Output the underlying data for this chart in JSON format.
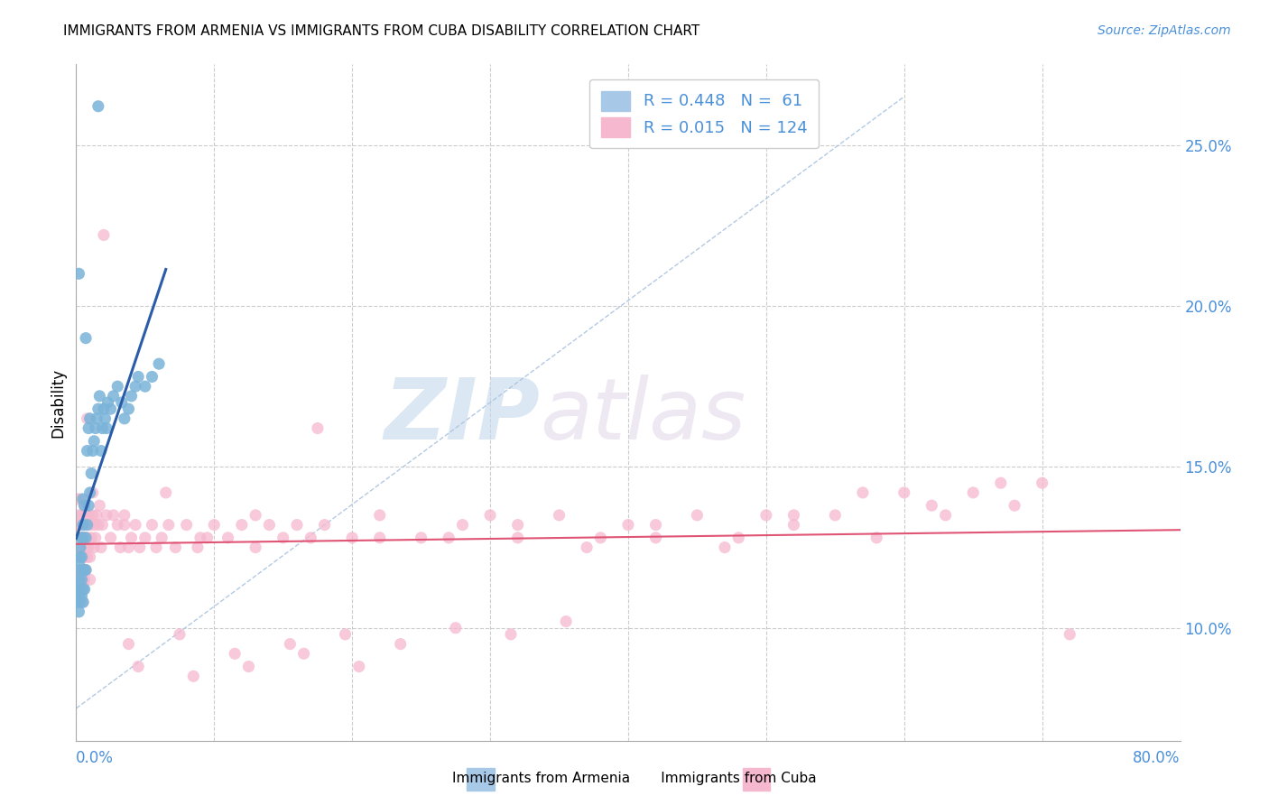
{
  "title": "IMMIGRANTS FROM ARMENIA VS IMMIGRANTS FROM CUBA DISABILITY CORRELATION CHART",
  "source": "Source: ZipAtlas.com",
  "ylabel": "Disability",
  "right_yticks": [
    0.1,
    0.15,
    0.2,
    0.25
  ],
  "right_yticklabels": [
    "10.0%",
    "15.0%",
    "20.0%",
    "25.0%"
  ],
  "xlim": [
    0.0,
    0.8
  ],
  "ylim": [
    0.065,
    0.275
  ],
  "armenia_color": "#7ab3d9",
  "cuba_color": "#f5b8ce",
  "armenia_line_color": "#2a5ca8",
  "cuba_line_color": "#e05575",
  "ref_line_color": "#aac4e0",
  "watermark_zip": "ZIP",
  "watermark_atlas": "atlas",
  "armenia_x": [
    0.001,
    0.001,
    0.002,
    0.002,
    0.002,
    0.002,
    0.003,
    0.003,
    0.003,
    0.003,
    0.003,
    0.004,
    0.004,
    0.004,
    0.004,
    0.005,
    0.005,
    0.005,
    0.005,
    0.005,
    0.005,
    0.006,
    0.006,
    0.006,
    0.007,
    0.007,
    0.007,
    0.008,
    0.008,
    0.009,
    0.009,
    0.01,
    0.01,
    0.011,
    0.012,
    0.013,
    0.014,
    0.015,
    0.016,
    0.017,
    0.018,
    0.019,
    0.02,
    0.021,
    0.022,
    0.023,
    0.025,
    0.027,
    0.03,
    0.033,
    0.035,
    0.038,
    0.04,
    0.043,
    0.045,
    0.05,
    0.055,
    0.06,
    0.001,
    0.002,
    0.016
  ],
  "armenia_y": [
    0.108,
    0.112,
    0.105,
    0.11,
    0.115,
    0.12,
    0.108,
    0.112,
    0.118,
    0.122,
    0.125,
    0.11,
    0.115,
    0.122,
    0.128,
    0.108,
    0.112,
    0.118,
    0.128,
    0.132,
    0.14,
    0.112,
    0.118,
    0.138,
    0.118,
    0.128,
    0.19,
    0.132,
    0.155,
    0.138,
    0.162,
    0.142,
    0.165,
    0.148,
    0.155,
    0.158,
    0.162,
    0.165,
    0.168,
    0.172,
    0.155,
    0.162,
    0.168,
    0.165,
    0.162,
    0.17,
    0.168,
    0.172,
    0.175,
    0.17,
    0.165,
    0.168,
    0.172,
    0.175,
    0.178,
    0.175,
    0.178,
    0.182,
    0.108,
    0.21,
    0.262
  ],
  "cuba_x": [
    0.001,
    0.001,
    0.001,
    0.002,
    0.002,
    0.002,
    0.003,
    0.003,
    0.003,
    0.003,
    0.004,
    0.004,
    0.004,
    0.004,
    0.005,
    0.005,
    0.005,
    0.005,
    0.006,
    0.006,
    0.006,
    0.006,
    0.007,
    0.007,
    0.007,
    0.008,
    0.008,
    0.008,
    0.009,
    0.009,
    0.01,
    0.01,
    0.01,
    0.011,
    0.012,
    0.012,
    0.013,
    0.013,
    0.014,
    0.015,
    0.016,
    0.017,
    0.018,
    0.019,
    0.02,
    0.022,
    0.025,
    0.027,
    0.03,
    0.032,
    0.035,
    0.038,
    0.04,
    0.043,
    0.046,
    0.05,
    0.055,
    0.058,
    0.062,
    0.067,
    0.072,
    0.08,
    0.088,
    0.095,
    0.1,
    0.11,
    0.12,
    0.13,
    0.14,
    0.15,
    0.16,
    0.17,
    0.18,
    0.2,
    0.22,
    0.25,
    0.28,
    0.3,
    0.32,
    0.35,
    0.38,
    0.4,
    0.42,
    0.45,
    0.48,
    0.5,
    0.52,
    0.55,
    0.58,
    0.6,
    0.63,
    0.65,
    0.68,
    0.7,
    0.035,
    0.065,
    0.09,
    0.13,
    0.175,
    0.22,
    0.27,
    0.32,
    0.37,
    0.42,
    0.47,
    0.52,
    0.57,
    0.62,
    0.67,
    0.72,
    0.038,
    0.075,
    0.115,
    0.155,
    0.195,
    0.235,
    0.275,
    0.315,
    0.355,
    0.045,
    0.085,
    0.125,
    0.165,
    0.205
  ],
  "cuba_y": [
    0.128,
    0.132,
    0.14,
    0.122,
    0.128,
    0.135,
    0.118,
    0.125,
    0.132,
    0.14,
    0.112,
    0.118,
    0.128,
    0.135,
    0.108,
    0.115,
    0.122,
    0.132,
    0.115,
    0.122,
    0.128,
    0.138,
    0.118,
    0.125,
    0.135,
    0.122,
    0.128,
    0.165,
    0.125,
    0.135,
    0.115,
    0.122,
    0.132,
    0.128,
    0.135,
    0.142,
    0.125,
    0.132,
    0.128,
    0.135,
    0.132,
    0.138,
    0.125,
    0.132,
    0.222,
    0.135,
    0.128,
    0.135,
    0.132,
    0.125,
    0.132,
    0.125,
    0.128,
    0.132,
    0.125,
    0.128,
    0.132,
    0.125,
    0.128,
    0.132,
    0.125,
    0.132,
    0.125,
    0.128,
    0.132,
    0.128,
    0.132,
    0.125,
    0.132,
    0.128,
    0.132,
    0.128,
    0.132,
    0.128,
    0.135,
    0.128,
    0.132,
    0.135,
    0.128,
    0.135,
    0.128,
    0.132,
    0.128,
    0.135,
    0.128,
    0.135,
    0.132,
    0.135,
    0.128,
    0.142,
    0.135,
    0.142,
    0.138,
    0.145,
    0.135,
    0.142,
    0.128,
    0.135,
    0.162,
    0.128,
    0.128,
    0.132,
    0.125,
    0.132,
    0.125,
    0.135,
    0.142,
    0.138,
    0.145,
    0.098,
    0.095,
    0.098,
    0.092,
    0.095,
    0.098,
    0.095,
    0.1,
    0.098,
    0.102,
    0.088,
    0.085,
    0.088,
    0.092,
    0.088
  ]
}
